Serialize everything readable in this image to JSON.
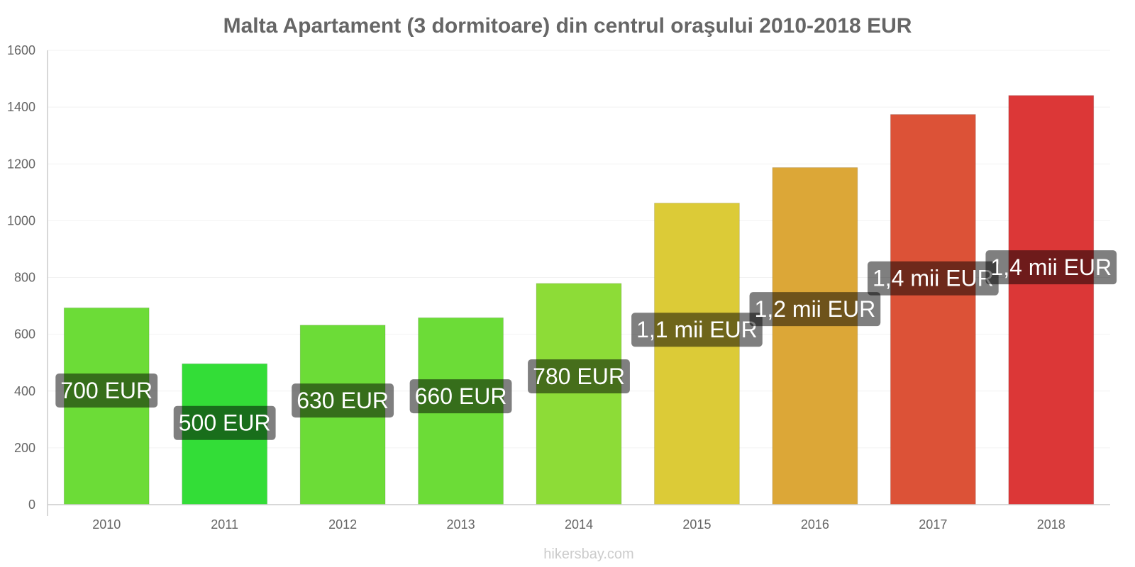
{
  "chart_data": {
    "type": "bar",
    "title": "Malta Apartament (3 dormitoare) din centrul oraşului 2010-2018 EUR",
    "xlabel": "",
    "ylabel": "",
    "categories": [
      "2010",
      "2011",
      "2012",
      "2013",
      "2014",
      "2015",
      "2016",
      "2017",
      "2018"
    ],
    "values": [
      693,
      496,
      632,
      658,
      779,
      1062,
      1187,
      1374,
      1441
    ],
    "data_labels": [
      "700 EUR",
      "500 EUR",
      "630 EUR",
      "660 EUR",
      "780 EUR",
      "1,1 mii EUR",
      "1,2 mii EUR",
      "1,4 mii EUR",
      "1,4 mii EUR"
    ],
    "colors": [
      "#6cdc37",
      "#33dd37",
      "#6cdc37",
      "#6cdc37",
      "#8ddc37",
      "#dccb37",
      "#dca737",
      "#dc5237",
      "#dc3737"
    ],
    "ylim": [
      0,
      1600
    ],
    "yticks": [
      "0",
      "200",
      "400",
      "600",
      "800",
      "1000",
      "1200",
      "1400",
      "1600"
    ],
    "grid": true,
    "legend": "none"
  },
  "watermark": "hikersbay.com"
}
